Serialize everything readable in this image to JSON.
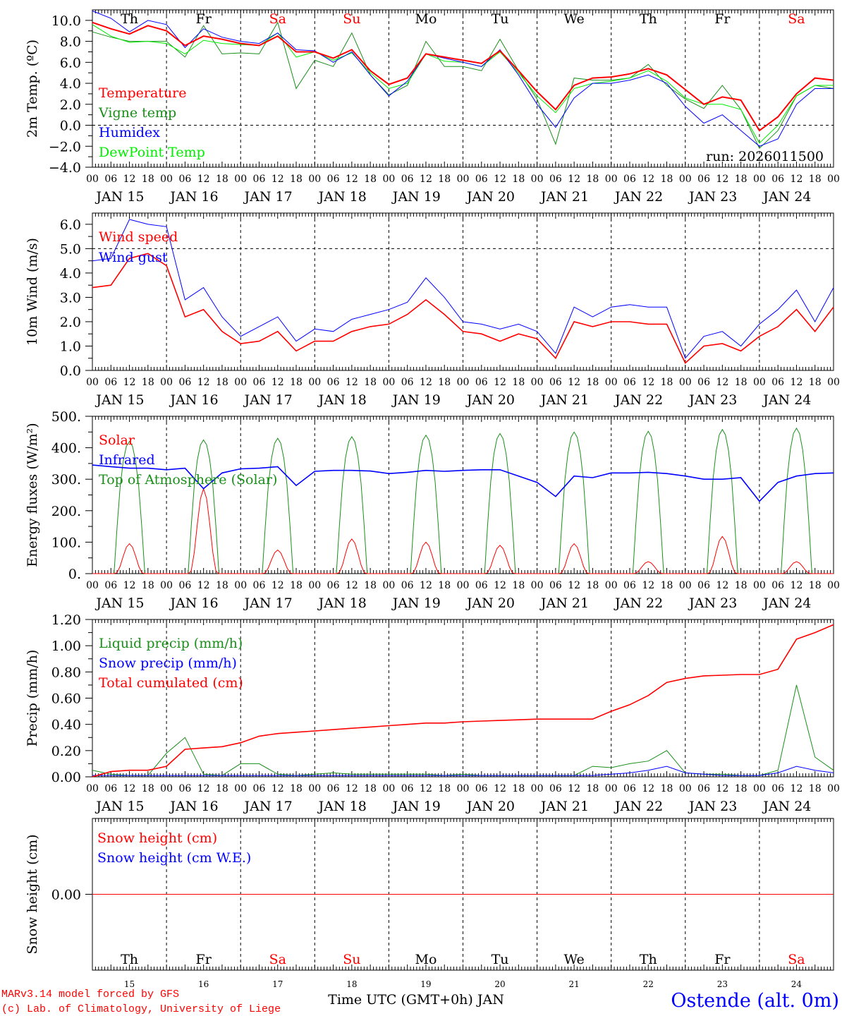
{
  "colors": {
    "red": "#ff0000",
    "darkgreen": "#1a8f1a",
    "blue": "#0000ff",
    "lime": "#00ee00",
    "black": "#000000"
  },
  "days": [
    {
      "name": "Th",
      "date": "JAN 15",
      "num": "15",
      "weekend": false
    },
    {
      "name": "Fr",
      "date": "JAN 16",
      "num": "16",
      "weekend": false
    },
    {
      "name": "Sa",
      "date": "JAN 17",
      "num": "17",
      "weekend": true
    },
    {
      "name": "Su",
      "date": "JAN 18",
      "num": "18",
      "weekend": true
    },
    {
      "name": "Mo",
      "date": "JAN 19",
      "num": "19",
      "weekend": false
    },
    {
      "name": "Tu",
      "date": "JAN 20",
      "num": "20",
      "weekend": false
    },
    {
      "name": "We",
      "date": "JAN 21",
      "num": "21",
      "weekend": false
    },
    {
      "name": "Th",
      "date": "JAN 22",
      "num": "22",
      "weekend": false
    },
    {
      "name": "Fr",
      "date": "JAN 23",
      "num": "23",
      "weekend": false
    },
    {
      "name": "Sa",
      "date": "JAN 24",
      "num": "24",
      "weekend": true
    }
  ],
  "hour_labels": [
    "00",
    "06",
    "12",
    "18"
  ],
  "chart_data": [
    {
      "type": "line",
      "id": "temp",
      "ylabel": "2m Temp. (ºC)",
      "ylim": [
        -4,
        11
      ],
      "yticks": [
        {
          "v": 10,
          "t": "10.0"
        },
        {
          "v": 8,
          "t": "8.0"
        },
        {
          "v": 6,
          "t": "6.0"
        },
        {
          "v": 4,
          "t": "4.0"
        },
        {
          "v": 2,
          "t": "2.0"
        },
        {
          "v": 0,
          "t": "0.0"
        },
        {
          "v": -2,
          "t": "−2.0"
        },
        {
          "v": -4,
          "t": "−4.0"
        }
      ],
      "hline": 0,
      "annotation": "run: 2026011500",
      "x_step_hours": 6,
      "series": [
        {
          "name": "Vigne temp",
          "color": "darkgreen",
          "values": [
            8.9,
            8.4,
            8.0,
            8.0,
            8.0,
            6.5,
            9.5,
            6.8,
            6.9,
            6.8,
            9.8,
            3.5,
            6.2,
            5.6,
            8.8,
            4.8,
            2.9,
            3.8,
            8.0,
            5.6,
            5.6,
            5.2,
            8.2,
            5.2,
            2.5,
            -1.8,
            4.5,
            4.3,
            4.3,
            4.5,
            5.8,
            3.8,
            2.5,
            1.6,
            3.8,
            1.5,
            -2.2,
            -0.5,
            2.8,
            3.8,
            3.5
          ]
        },
        {
          "name": "DewPoint Temp",
          "color": "lime",
          "values": [
            9.6,
            8.5,
            7.9,
            8.0,
            7.8,
            6.8,
            8.1,
            7.8,
            7.7,
            7.6,
            8.8,
            6.5,
            7.0,
            6.2,
            6.9,
            5.0,
            3.5,
            4.0,
            6.8,
            6.1,
            6.0,
            5.6,
            7.0,
            5.0,
            2.8,
            1.2,
            3.5,
            4.0,
            4.2,
            4.5,
            5.2,
            4.2,
            2.6,
            2.0,
            2.0,
            1.5,
            -1.7,
            0.0,
            2.8,
            3.8,
            3.8
          ]
        },
        {
          "name": "Humidex",
          "color": "blue",
          "values": [
            10.9,
            10.2,
            8.9,
            10.0,
            9.6,
            7.4,
            9.2,
            8.4,
            8.0,
            7.8,
            8.8,
            7.2,
            7.1,
            6.0,
            7.0,
            4.8,
            2.8,
            4.2,
            6.8,
            6.4,
            6.0,
            5.6,
            7.2,
            4.8,
            2.0,
            -0.2,
            2.6,
            4.0,
            4.0,
            4.3,
            4.8,
            4.0,
            1.8,
            0.2,
            1.0,
            -0.5,
            -2.0,
            -1.3,
            2.0,
            3.5,
            3.5
          ]
        },
        {
          "name": "Temperature",
          "color": "red",
          "width": 2,
          "values": [
            9.8,
            9.2,
            8.7,
            9.5,
            9.0,
            7.6,
            8.5,
            8.2,
            7.8,
            7.6,
            8.5,
            7.0,
            7.0,
            6.4,
            7.2,
            5.2,
            3.9,
            4.5,
            6.8,
            6.5,
            6.2,
            5.9,
            7.1,
            5.2,
            3.2,
            1.5,
            3.8,
            4.5,
            4.6,
            4.9,
            5.4,
            4.8,
            3.4,
            2.0,
            2.7,
            2.4,
            -0.5,
            0.8,
            3.0,
            4.5,
            4.3
          ]
        }
      ],
      "legend": [
        "Temperature",
        "Vigne temp",
        "Humidex",
        "DewPoint Temp"
      ]
    },
    {
      "type": "line",
      "id": "wind",
      "ylabel": "10m Wind (m/s)",
      "ylim": [
        0,
        6.46
      ],
      "yticks": [
        {
          "v": 6,
          "t": "6.0"
        },
        {
          "v": 5,
          "t": "5.0"
        },
        {
          "v": 4,
          "t": "4.0"
        },
        {
          "v": 3,
          "t": "3.0"
        },
        {
          "v": 2,
          "t": "2.0"
        },
        {
          "v": 1,
          "t": "1.0"
        },
        {
          "v": 0,
          "t": "0.0"
        }
      ],
      "hline": 5,
      "x_step_hours": 6,
      "series": [
        {
          "name": "Wind gust",
          "color": "blue",
          "values": [
            4.5,
            4.6,
            6.2,
            6.0,
            5.9,
            2.9,
            3.4,
            2.2,
            1.4,
            1.8,
            2.2,
            1.2,
            1.7,
            1.6,
            2.1,
            2.3,
            2.5,
            2.8,
            3.8,
            3.0,
            2.0,
            1.9,
            1.7,
            1.9,
            1.6,
            0.7,
            2.6,
            2.2,
            2.6,
            2.7,
            2.6,
            2.6,
            0.5,
            1.4,
            1.6,
            1.0,
            1.9,
            2.5,
            3.3,
            2.0,
            3.4
          ]
        },
        {
          "name": "Wind speed",
          "color": "red",
          "width": 1.6,
          "values": [
            3.4,
            3.5,
            4.6,
            4.8,
            4.3,
            2.2,
            2.5,
            1.6,
            1.1,
            1.2,
            1.6,
            0.8,
            1.2,
            1.2,
            1.6,
            1.8,
            1.9,
            2.3,
            2.9,
            2.3,
            1.6,
            1.5,
            1.2,
            1.5,
            1.3,
            0.5,
            2.0,
            1.8,
            2.0,
            2.0,
            1.9,
            1.9,
            0.3,
            1.0,
            1.1,
            0.8,
            1.4,
            1.8,
            2.5,
            1.6,
            2.6
          ]
        }
      ],
      "legend": [
        "Wind speed",
        "Wind gust"
      ]
    },
    {
      "type": "line",
      "id": "energy",
      "ylabel": "Energy fluxes (W/m²)",
      "ylim": [
        0,
        500
      ],
      "yticks": [
        {
          "v": 500,
          "t": "500."
        },
        {
          "v": 400,
          "t": "400."
        },
        {
          "v": 300,
          "t": "300."
        },
        {
          "v": 200,
          "t": "200."
        },
        {
          "v": 100,
          "t": "100."
        },
        {
          "v": 0,
          "t": "0."
        }
      ],
      "x_step_hours": 6,
      "series": [
        {
          "name": "Top of Atmosphere (Solar)",
          "color": "darkgreen",
          "daily_max": [
            420,
            425,
            430,
            435,
            440,
            445,
            450,
            452,
            458,
            462
          ]
        },
        {
          "name": "Solar",
          "color": "red",
          "daily_max": [
            95,
            270,
            75,
            110,
            100,
            90,
            95,
            38,
            118,
            38
          ]
        },
        {
          "name": "Infrared",
          "color": "blue",
          "width": 1.6,
          "values": [
            345,
            340,
            335,
            335,
            330,
            335,
            270,
            320,
            333,
            335,
            340,
            280,
            325,
            328,
            328,
            326,
            318,
            322,
            328,
            325,
            328,
            330,
            330,
            310,
            290,
            245,
            310,
            305,
            320,
            320,
            322,
            318,
            310,
            300,
            300,
            305,
            230,
            290,
            310,
            318,
            320
          ]
        }
      ],
      "legend": [
        "Solar",
        "Infrared",
        "Top of Atmosphere (Solar)"
      ]
    },
    {
      "type": "line",
      "id": "precip",
      "ylabel": "Precip (mm/h)",
      "ylim": [
        0,
        1.2
      ],
      "yticks": [
        {
          "v": 1.2,
          "t": "1.20"
        },
        {
          "v": 1.0,
          "t": "1.00"
        },
        {
          "v": 0.8,
          "t": "0.80"
        },
        {
          "v": 0.6,
          "t": "0.60"
        },
        {
          "v": 0.4,
          "t": "0.40"
        },
        {
          "v": 0.2,
          "t": "0.20"
        },
        {
          "v": 0,
          "t": "0.00"
        }
      ],
      "x_step_hours": 6,
      "series": [
        {
          "name": "Liquid precip (mm/h)",
          "color": "darkgreen",
          "values": [
            0.05,
            0.02,
            0.01,
            0.01,
            0.18,
            0.3,
            0.02,
            0.01,
            0.1,
            0.1,
            0.02,
            0.01,
            0.02,
            0.03,
            0.02,
            0.02,
            0.02,
            0.02,
            0.02,
            0.01,
            0.02,
            0.01,
            0.01,
            0.01,
            0.01,
            0.01,
            0.01,
            0.08,
            0.07,
            0.1,
            0.12,
            0.2,
            0.03,
            0.02,
            0.02,
            0.01,
            0.01,
            0.05,
            0.7,
            0.15,
            0.05
          ]
        },
        {
          "name": "Snow precip (mm/h)",
          "color": "blue",
          "values": [
            0.01,
            0.01,
            0.01,
            0.01,
            0.01,
            0.01,
            0.01,
            0.01,
            0.01,
            0.01,
            0.01,
            0.01,
            0.01,
            0.01,
            0.01,
            0.01,
            0.01,
            0.01,
            0.01,
            0.01,
            0.01,
            0.01,
            0.01,
            0.01,
            0.01,
            0.01,
            0.01,
            0.01,
            0.02,
            0.03,
            0.05,
            0.08,
            0.03,
            0.02,
            0.01,
            0.01,
            0.01,
            0.03,
            0.08,
            0.05,
            0.03
          ]
        },
        {
          "name": "Total cumulated (cm)",
          "color": "red",
          "width": 1.6,
          "values": [
            0.0,
            0.04,
            0.05,
            0.05,
            0.08,
            0.21,
            0.22,
            0.23,
            0.26,
            0.31,
            0.33,
            0.34,
            0.35,
            0.36,
            0.37,
            0.38,
            0.39,
            0.4,
            0.41,
            0.41,
            0.42,
            0.425,
            0.43,
            0.435,
            0.44,
            0.44,
            0.44,
            0.44,
            0.5,
            0.55,
            0.62,
            0.72,
            0.75,
            0.77,
            0.775,
            0.78,
            0.78,
            0.82,
            1.05,
            1.1,
            1.16
          ]
        }
      ],
      "legend": [
        "Liquid precip (mm/h)",
        "Snow precip (mm/h)",
        "Total cumulated (cm)"
      ]
    },
    {
      "type": "line",
      "id": "snow",
      "ylabel": "Snow height (cm)",
      "ylim": [
        -1,
        1
      ],
      "yticks": [
        {
          "v": 0,
          "t": "0.00"
        }
      ],
      "x_step_hours": 6,
      "series": [
        {
          "name": "Snow height (cm W.E.)",
          "color": "blue",
          "values": [
            0,
            0,
            0,
            0,
            0,
            0,
            0,
            0,
            0,
            0,
            0,
            0,
            0,
            0,
            0,
            0,
            0,
            0,
            0,
            0,
            0,
            0,
            0,
            0,
            0,
            0,
            0,
            0,
            0,
            0,
            0,
            0,
            0,
            0,
            0,
            0,
            0,
            0,
            0,
            0,
            0
          ]
        },
        {
          "name": "Snow height (cm)",
          "color": "red",
          "values": [
            0,
            0,
            0,
            0,
            0,
            0,
            0,
            0,
            0,
            0,
            0,
            0,
            0,
            0,
            0,
            0,
            0,
            0,
            0,
            0,
            0,
            0,
            0,
            0,
            0,
            0,
            0,
            0,
            0,
            0,
            0,
            0,
            0,
            0,
            0,
            0,
            0,
            0,
            0,
            0,
            0
          ]
        }
      ],
      "legend": [
        "Snow height (cm)",
        "Snow height (cm W.E.)"
      ],
      "xlabel": "Time UTC (GMT+0h) JAN"
    }
  ],
  "footer": {
    "credit1": "MARv3.14 model forced by GFS",
    "credit2": "(c) Lab. of Climatology, University of Liege",
    "station": "Ostende (alt. 0m)"
  }
}
